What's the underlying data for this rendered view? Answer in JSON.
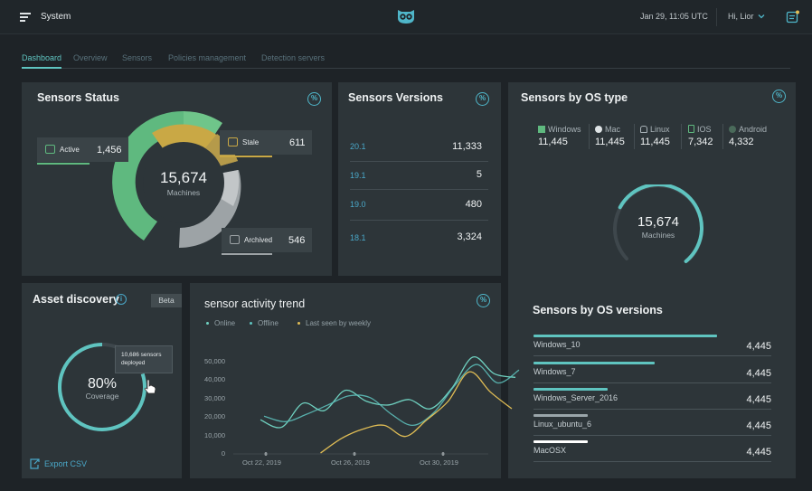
{
  "header": {
    "system_label": "System",
    "datetime": "Jan 29, 11:05 UTC",
    "greeting": "Hi, Lior"
  },
  "tabs": [
    {
      "label": "Dashboard",
      "active": true
    },
    {
      "label": "Overview",
      "active": false
    },
    {
      "label": "Sensors",
      "active": false
    },
    {
      "label": "Policies management",
      "active": false
    },
    {
      "label": "Detection servers",
      "active": false
    }
  ],
  "sensors_status": {
    "title": "Sensors Status",
    "total": "15,674",
    "total_label": "Machines",
    "active": {
      "label": "Active",
      "value": "1,456",
      "color": "#5fb97f"
    },
    "stale": {
      "label": "Stale",
      "value": "611",
      "color": "#c9a845"
    },
    "archived": {
      "label": "Archived",
      "value": "546",
      "color": "#9da3a6"
    }
  },
  "sensors_versions": {
    "title": "Sensors Versions",
    "rows": [
      {
        "version": "20.1",
        "count": "11,333"
      },
      {
        "version": "19.1",
        "count": "5"
      },
      {
        "version": "19.0",
        "count": "480"
      },
      {
        "version": "18.1",
        "count": "3,324"
      }
    ]
  },
  "sensors_os": {
    "title": "Sensors by OS type",
    "types": [
      {
        "name": "Windows",
        "value": "11,445",
        "icon": "windows-icon"
      },
      {
        "name": "Mac",
        "value": "11,445",
        "icon": "apple-icon"
      },
      {
        "name": "Linux",
        "value": "11,445",
        "icon": "linux-icon"
      },
      {
        "name": "IOS",
        "value": "7,342",
        "icon": "phone-icon"
      },
      {
        "name": "Android",
        "value": "4,332",
        "icon": "android-icon"
      }
    ],
    "total": "15,674",
    "total_label": "Machines",
    "ring_fraction": 0.72,
    "accent": "#5fc4c0"
  },
  "os_versions": {
    "title": "Sensors by OS versions",
    "rows": [
      {
        "name": "Windows_10",
        "value": "4,445",
        "fraction": 0.77
      },
      {
        "name": "Windows_7",
        "value": "4,445",
        "fraction": 0.51
      },
      {
        "name": "Windows_Server_2016",
        "value": "4,445",
        "fraction": 0.31
      },
      {
        "name": "Linux_ubuntu_6",
        "value": "4,445",
        "fraction": 0.23
      },
      {
        "name": "MacOSX",
        "value": "4,445",
        "fraction": 0.23
      }
    ]
  },
  "asset_discovery": {
    "title": "Asset discovery",
    "beta_label": "Beta",
    "coverage_value": "80%",
    "coverage_label": "Coverage",
    "coverage_fraction": 0.8,
    "tooltip_line1": "10,686 sensors",
    "tooltip_line2": "deployed",
    "export_label": "Export CSV"
  },
  "chart_data": {
    "type": "line",
    "title": "sensor activity trend",
    "legend": [
      "Online",
      "Offline",
      "Last seen by weekly"
    ],
    "legend_placement": "top-left",
    "y_ticks": [
      "50,000",
      "40,000",
      "30,000",
      "20,000",
      "10,000",
      "0"
    ],
    "x_ticks": [
      "Oct 22, 2019",
      "Oct 26, 2019",
      "Oct 30, 2019"
    ],
    "ylim": [
      0,
      55000
    ],
    "x": [
      20,
      21,
      22,
      23,
      24,
      25,
      26,
      27,
      28,
      29,
      30,
      31,
      32
    ],
    "series": [
      {
        "name": "Online",
        "color": "#6fd1c0",
        "values": [
          18000,
          14000,
          27000,
          23000,
          34000,
          28000,
          26000,
          29000,
          24000,
          35000,
          52000,
          43000,
          41000
        ]
      },
      {
        "name": "Offline",
        "color": "#5fc4c0",
        "values": [
          20000,
          17000,
          21000,
          26000,
          31000,
          30000,
          21000,
          15000,
          22000,
          37000,
          48000,
          38000,
          45000
        ]
      },
      {
        "name": "Last seen by weekly",
        "color": "#e0bd55",
        "values": [
          null,
          null,
          null,
          0,
          8000,
          13000,
          15000,
          9000,
          18000,
          28000,
          44000,
          33000,
          24000
        ]
      }
    ]
  }
}
